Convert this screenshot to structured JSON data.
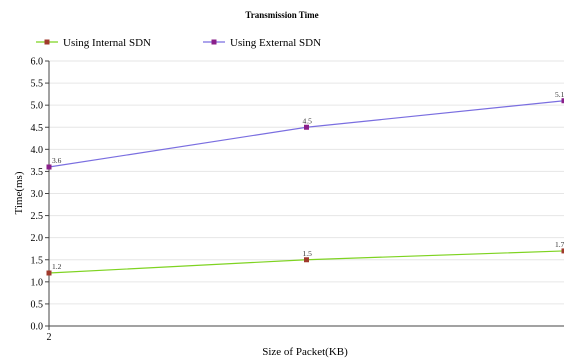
{
  "chart_data": {
    "type": "line",
    "title": "Transmission Time",
    "xlabel": "Size of Packet(KB)",
    "ylabel": "Time(ms)",
    "x": [
      2,
      4,
      6
    ],
    "x_tick_labels": [
      "2"
    ],
    "ylim": [
      0,
      6
    ],
    "yticks": [
      "0.0",
      "0.5",
      "1.0",
      "1.5",
      "2.0",
      "2.5",
      "3.0",
      "3.5",
      "4.0",
      "4.5",
      "5.0",
      "5.5",
      "6.0"
    ],
    "grid": true,
    "legend_position": "top-left",
    "series": [
      {
        "name": "Using Internal SDN",
        "values": [
          1.2,
          1.5,
          1.7
        ],
        "labels": [
          "1.2",
          "1.5",
          "1.7"
        ],
        "color": "#7ed321",
        "marker_color": "#a03a2c"
      },
      {
        "name": "Using External SDN",
        "values": [
          3.6,
          4.5,
          5.1
        ],
        "labels": [
          "3.6",
          "4.5",
          "5.1"
        ],
        "color": "#7a6ee0",
        "marker_color": "#8a1f8a"
      }
    ]
  }
}
